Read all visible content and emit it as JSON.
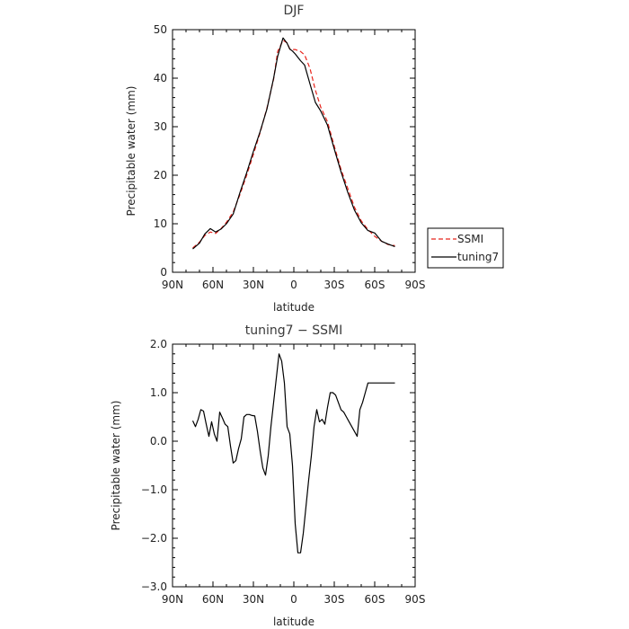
{
  "chart_data": [
    {
      "type": "line",
      "title": "DJF",
      "xlabel": "latitude",
      "ylabel": "Precipitable water  (mm)",
      "xlim": [
        90,
        -90
      ],
      "ylim": [
        0,
        50
      ],
      "xticks": [
        90,
        60,
        30,
        0,
        -30,
        -60,
        -90
      ],
      "xtick_labels": [
        "90N",
        "60N",
        "30N",
        "0",
        "30S",
        "60S",
        "90S"
      ],
      "yticks": [
        0,
        10,
        20,
        30,
        40,
        50
      ],
      "ytick_labels": [
        "0",
        "10",
        "20",
        "30",
        "40",
        "50"
      ],
      "legend_position": "right",
      "series": [
        {
          "name": "SSMI",
          "color": "#e8241c",
          "dash": "dashed",
          "x": [
            75,
            70,
            66,
            62,
            58,
            54,
            50,
            45,
            40,
            35,
            30,
            25,
            20,
            15,
            12,
            8,
            5,
            3,
            1,
            -1,
            -5,
            -8,
            -12,
            -16,
            -20,
            -25,
            -30,
            -35,
            -40,
            -45,
            -50,
            -55,
            -60,
            -65,
            -70,
            -75
          ],
          "y": [
            5.0,
            6.2,
            7.6,
            8.3,
            8.0,
            9.0,
            10.3,
            12.4,
            16.0,
            20.0,
            24.3,
            28.8,
            33.8,
            39.8,
            45.5,
            47.8,
            47.3,
            46.0,
            45.9,
            45.9,
            45.5,
            44.8,
            42.0,
            37.5,
            34.0,
            31.0,
            26.0,
            21.2,
            17.3,
            13.4,
            10.6,
            8.8,
            7.4,
            6.4,
            5.7,
            5.5
          ]
        },
        {
          "name": "tuning7",
          "color": "#000000",
          "dash": "solid",
          "x": [
            75,
            70,
            66,
            62,
            58,
            54,
            50,
            45,
            40,
            35,
            30,
            25,
            20,
            15,
            12,
            8,
            5,
            3,
            1,
            -1,
            -5,
            -8,
            -12,
            -16,
            -20,
            -25,
            -30,
            -35,
            -40,
            -45,
            -50,
            -55,
            -60,
            -65,
            -70,
            -75
          ],
          "y": [
            4.8,
            6.0,
            7.9,
            9.0,
            8.3,
            8.9,
            10.0,
            12.0,
            16.4,
            20.5,
            24.9,
            29.0,
            33.6,
            40.0,
            44.5,
            48.3,
            47.2,
            46.0,
            45.6,
            45.0,
            43.6,
            42.7,
            38.8,
            35.0,
            33.2,
            30.3,
            25.4,
            20.7,
            16.5,
            12.8,
            10.2,
            8.6,
            8.1,
            6.4,
            5.8,
            5.3
          ]
        }
      ]
    },
    {
      "type": "line",
      "title": "tuning7 − SSMI",
      "xlabel": "latitude",
      "ylabel": "Precipitable water  (mm)",
      "xlim": [
        90,
        -90
      ],
      "ylim": [
        -3.0,
        2.0
      ],
      "xticks": [
        90,
        60,
        30,
        0,
        -30,
        -60,
        -90
      ],
      "xtick_labels": [
        "90N",
        "60N",
        "30N",
        "0",
        "30S",
        "60S",
        "90S"
      ],
      "yticks": [
        -3,
        -2,
        -1,
        0,
        1,
        2
      ],
      "ytick_labels": [
        "−3.0",
        "−2.0",
        "−1.0",
        "0.0",
        "1.0",
        "2.0"
      ],
      "series": [
        {
          "color": "#000000",
          "dash": "solid",
          "x": [
            75,
            73,
            71,
            69,
            67,
            65,
            63,
            61,
            59,
            57,
            55,
            53,
            51,
            49,
            47,
            45,
            43,
            41,
            39,
            37,
            35,
            33,
            31,
            29,
            27,
            25,
            23,
            21,
            19,
            17,
            15,
            13,
            11,
            9,
            7,
            5,
            3,
            1,
            -1,
            -3,
            -5,
            -7,
            -9,
            -11,
            -13,
            -15,
            -17,
            -19,
            -21,
            -23,
            -25,
            -27,
            -29,
            -31,
            -33,
            -35,
            -37,
            -39,
            -41,
            -43,
            -45,
            -47,
            -49,
            -51,
            -53,
            -55,
            -57,
            -59,
            -61,
            -63,
            -65,
            -67,
            -69,
            -71,
            -73,
            -75
          ],
          "y": [
            0.42,
            0.3,
            0.45,
            0.65,
            0.62,
            0.35,
            0.1,
            0.4,
            0.15,
            0.0,
            0.6,
            0.48,
            0.35,
            0.3,
            -0.1,
            -0.45,
            -0.4,
            -0.15,
            0.05,
            0.5,
            0.55,
            0.55,
            0.53,
            0.52,
            0.2,
            -0.2,
            -0.55,
            -0.7,
            -0.3,
            0.3,
            0.8,
            1.3,
            1.8,
            1.65,
            1.2,
            0.3,
            0.15,
            -0.5,
            -1.7,
            -2.3,
            -2.3,
            -1.9,
            -1.35,
            -0.8,
            -0.3,
            0.3,
            0.65,
            0.4,
            0.45,
            0.35,
            0.7,
            1.0,
            1.0,
            0.95,
            0.8,
            0.65,
            0.6,
            0.5,
            0.4,
            0.3,
            0.2,
            0.1,
            0.65,
            0.8,
            1.0,
            1.2,
            1.2,
            1.2,
            1.2,
            1.2,
            1.2,
            1.2,
            1.2,
            1.2,
            1.2,
            1.2
          ]
        }
      ]
    }
  ]
}
